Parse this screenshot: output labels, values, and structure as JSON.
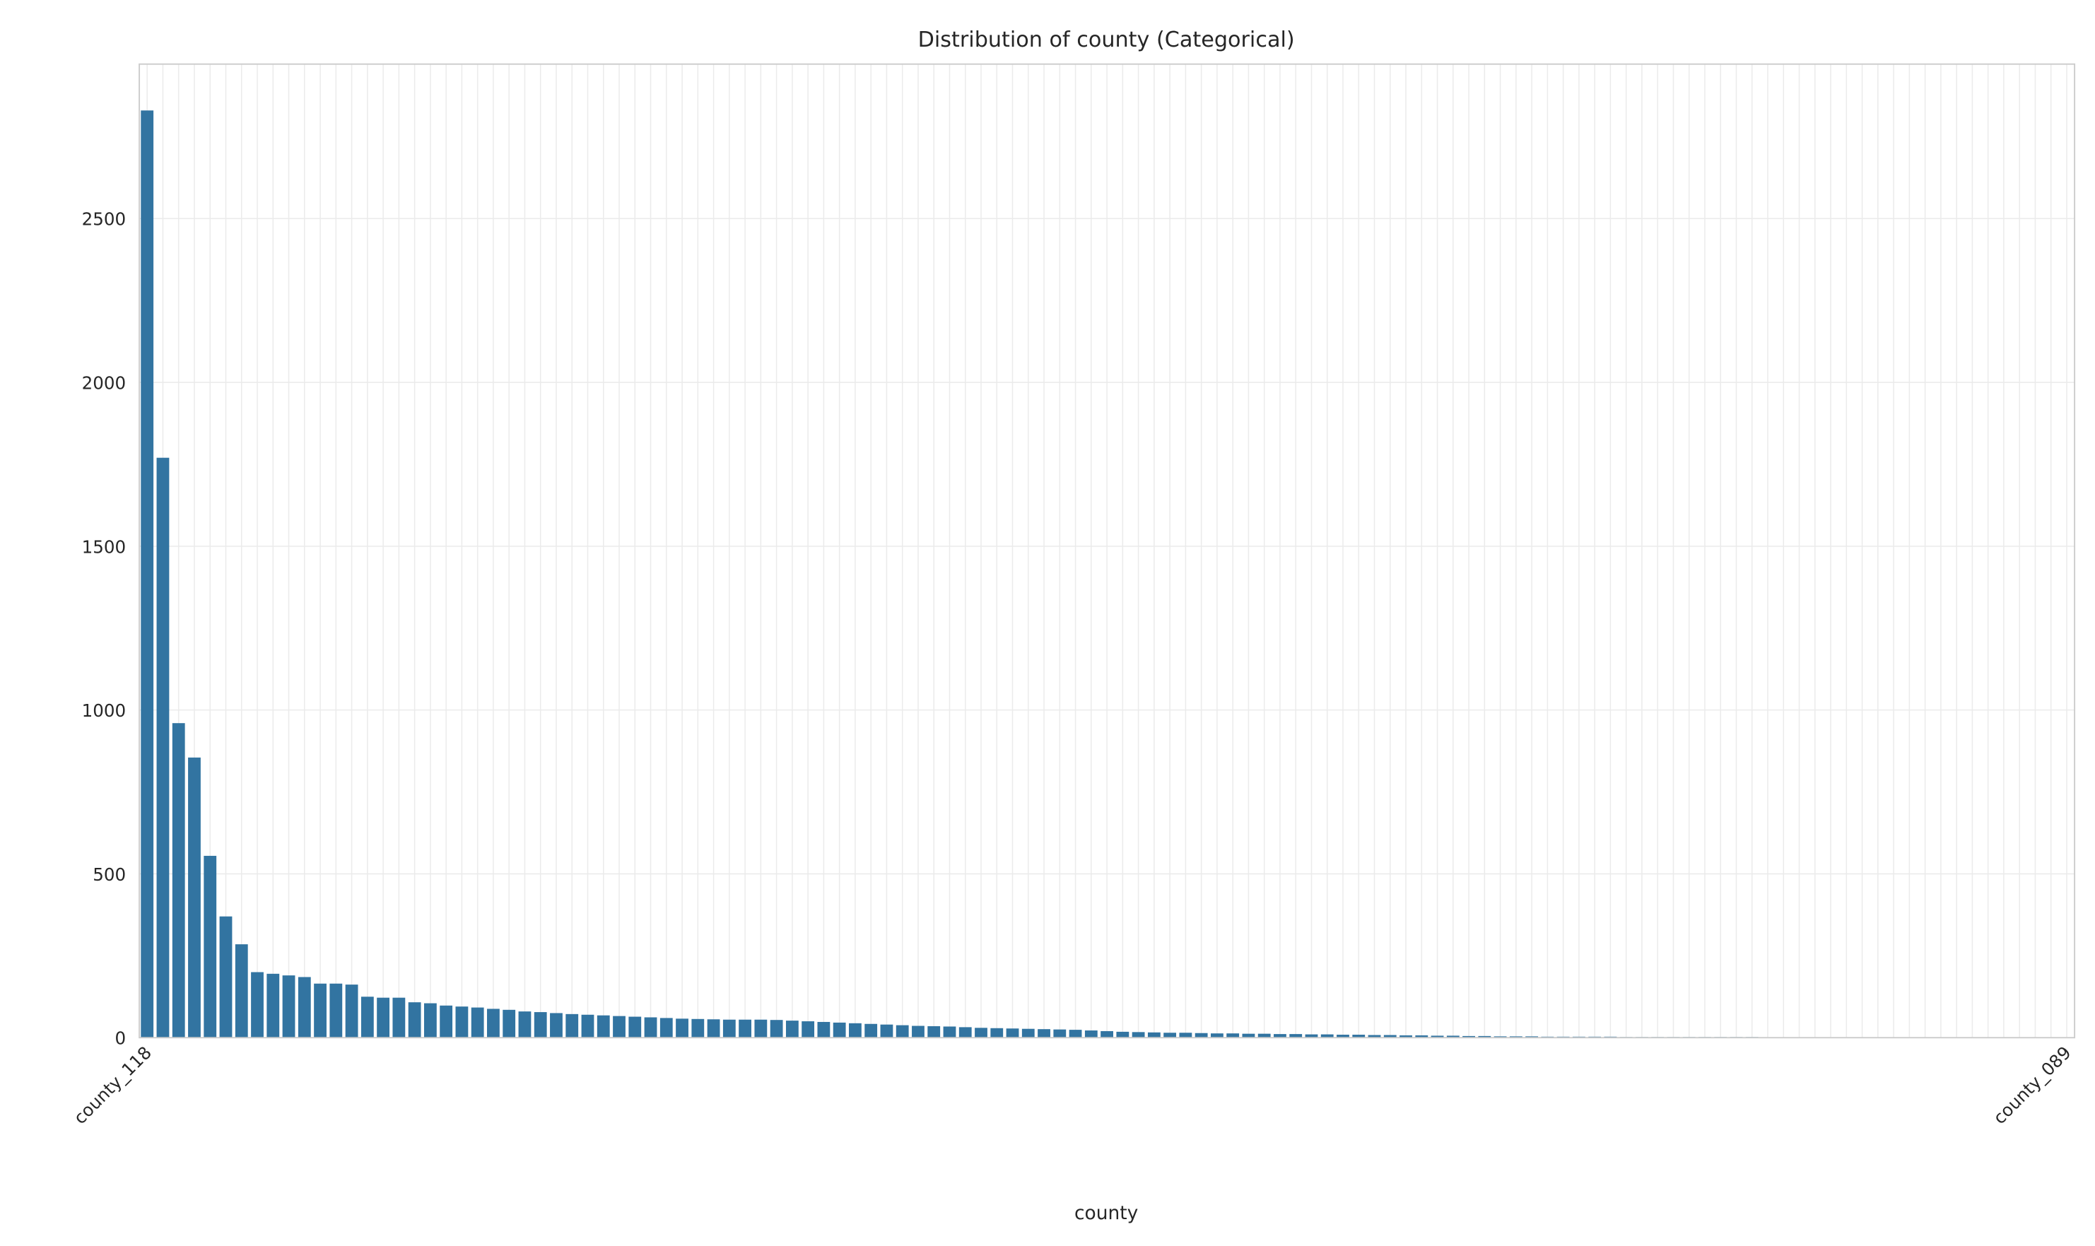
{
  "chart_data": {
    "type": "bar",
    "title": "Distribution of county (Categorical)",
    "x_label": "county",
    "categories": [
      "county_118",
      null,
      null,
      null,
      null,
      null,
      null,
      null,
      null,
      null,
      null,
      null,
      null,
      null,
      null,
      null,
      null,
      null,
      null,
      null,
      null,
      null,
      null,
      null,
      null,
      null,
      null,
      null,
      null,
      null,
      null,
      null,
      null,
      null,
      null,
      null,
      null,
      null,
      null,
      null,
      null,
      null,
      null,
      null,
      null,
      null,
      null,
      null,
      null,
      null,
      null,
      null,
      null,
      null,
      null,
      null,
      null,
      null,
      null,
      null,
      null,
      null,
      null,
      null,
      null,
      null,
      null,
      null,
      null,
      null,
      null,
      null,
      null,
      null,
      null,
      null,
      null,
      null,
      null,
      null,
      null,
      null,
      null,
      null,
      null,
      null,
      null,
      null,
      null,
      null,
      null,
      null,
      null,
      null,
      null,
      null,
      null,
      null,
      null,
      null,
      null,
      null,
      null,
      null,
      null,
      null,
      null,
      null,
      null,
      null,
      null,
      null,
      null,
      null,
      null,
      null,
      null,
      null,
      null,
      null,
      null,
      null,
      "county_089"
    ],
    "values": [
      2830,
      1770,
      960,
      855,
      555,
      370,
      285,
      200,
      195,
      190,
      185,
      165,
      165,
      162,
      125,
      122,
      122,
      108,
      105,
      98,
      95,
      92,
      88,
      85,
      80,
      78,
      75,
      72,
      70,
      68,
      66,
      64,
      62,
      60,
      58,
      57,
      56,
      55,
      55,
      55,
      54,
      52,
      50,
      48,
      46,
      44,
      42,
      40,
      38,
      36,
      35,
      34,
      32,
      30,
      29,
      28,
      27,
      26,
      25,
      24,
      22,
      20,
      18,
      17,
      16,
      15,
      15,
      14,
      13,
      13,
      12,
      12,
      11,
      11,
      10,
      10,
      9,
      9,
      8,
      8,
      7,
      7,
      6,
      6,
      5,
      5,
      4,
      4,
      4,
      3,
      3,
      3,
      3,
      3,
      2,
      2,
      2,
      2,
      2,
      2,
      2,
      2,
      2,
      1,
      1,
      1,
      1,
      1,
      1,
      1,
      1,
      1,
      1,
      1,
      1,
      1,
      1,
      1,
      1,
      1,
      1,
      1,
      1
    ],
    "color": "#3274a1",
    "ylim": [
      0,
      2971.5
    ],
    "yticks": [
      0,
      500,
      1000,
      1500,
      2000,
      2500
    ],
    "grid": true
  }
}
